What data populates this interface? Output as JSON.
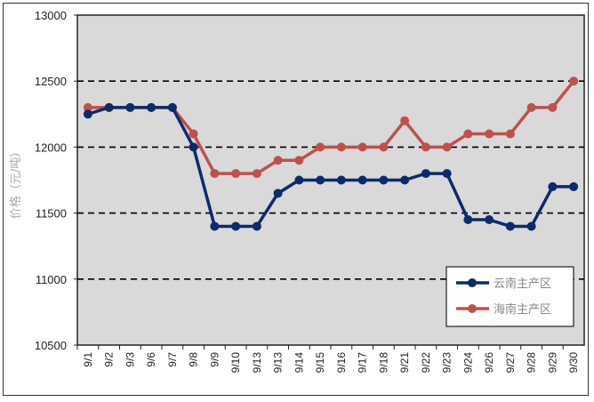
{
  "chart_data": {
    "type": "line",
    "title": "",
    "xlabel": "",
    "ylabel": "价格（元/吨）",
    "ylim": [
      10500,
      13000
    ],
    "yticks": [
      10500,
      11000,
      11500,
      12000,
      12500,
      13000
    ],
    "grid": "horizontal dashed",
    "legend_position": "bottom-right",
    "background": "#d9d9d9",
    "categories": [
      "9/1",
      "9/2",
      "9/3",
      "9/6",
      "9/7",
      "9/8",
      "9/9",
      "9/10",
      "9/13",
      "9/13",
      "9/14",
      "9/15",
      "9/16",
      "9/17",
      "9/18",
      "9/21",
      "9/22",
      "9/23",
      "9/24",
      "9/26",
      "9/27",
      "9/28",
      "9/29",
      "9/30"
    ],
    "series": [
      {
        "name": "云南主产区",
        "color": "#0d2a6b",
        "values": [
          12250,
          12300,
          12300,
          12300,
          12300,
          12000,
          11400,
          11400,
          11400,
          11650,
          11750,
          11750,
          11750,
          11750,
          11750,
          11750,
          11800,
          11800,
          11450,
          11450,
          11400,
          11400,
          11700,
          11700
        ]
      },
      {
        "name": "海南主产区",
        "color": "#c0504d",
        "values": [
          12300,
          12300,
          12300,
          12300,
          12300,
          12100,
          11800,
          11800,
          11800,
          11900,
          11900,
          12000,
          12000,
          12000,
          12000,
          12200,
          12000,
          12000,
          12100,
          12100,
          12100,
          12300,
          12300,
          12500
        ]
      }
    ]
  }
}
